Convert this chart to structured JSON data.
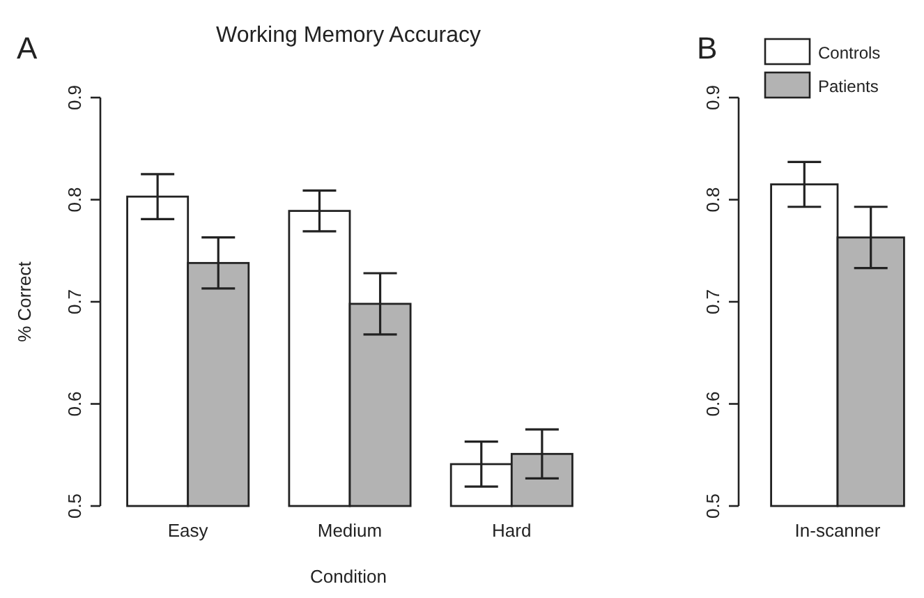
{
  "chart_data": [
    {
      "type": "bar",
      "title": "Working Memory Accuracy",
      "xlabel": "Condition",
      "ylabel": "% Correct",
      "annotations": [
        "A"
      ],
      "categories": [
        "Easy",
        "Medium",
        "Hard"
      ],
      "series": [
        {
          "color": "#ffffff",
          "values": [
            0.803,
            0.789,
            0.541
          ],
          "errors": [
            0.022,
            0.02,
            0.022
          ]
        },
        {
          "color": "#b3b3b3",
          "values": [
            0.738,
            0.698,
            0.551
          ],
          "errors": [
            0.025,
            0.03,
            0.024
          ]
        }
      ],
      "ylim": [
        0.5,
        0.9
      ],
      "yticks": [
        0.5,
        0.6,
        0.7,
        0.8,
        0.9
      ],
      "grid": false,
      "legend": false
    },
    {
      "type": "bar",
      "annotations": [
        "B"
      ],
      "categories": [
        "In-scanner"
      ],
      "series": [
        {
          "name": "Controls",
          "color": "#ffffff",
          "values": [
            0.815
          ],
          "errors": [
            0.022
          ]
        },
        {
          "name": "Patients",
          "color": "#b3b3b3",
          "values": [
            0.763
          ],
          "errors": [
            0.03
          ]
        }
      ],
      "ylim": [
        0.5,
        0.9
      ],
      "yticks": [
        0.5,
        0.6,
        0.7,
        0.8,
        0.9
      ],
      "grid": false,
      "legend": "top"
    }
  ]
}
